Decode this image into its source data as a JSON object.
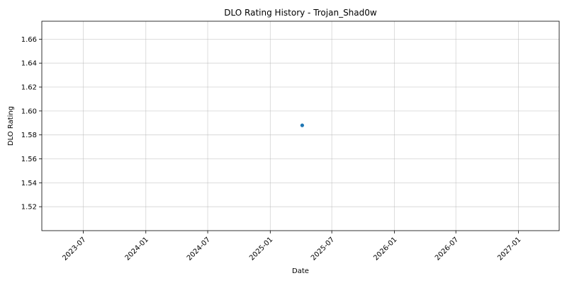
{
  "chart_data": {
    "type": "scatter",
    "title": "DLO Rating History - Trojan_Shad0w",
    "xlabel": "Date",
    "ylabel": "DLO Rating",
    "x_type": "date",
    "xlim": [
      "2023-03-01",
      "2027-05-01"
    ],
    "ylim": [
      1.5,
      1.675
    ],
    "x_ticks": [
      "2023-07",
      "2024-01",
      "2024-07",
      "2025-01",
      "2025-07",
      "2026-01",
      "2026-07",
      "2027-01"
    ],
    "y_ticks": [
      "1.52",
      "1.54",
      "1.56",
      "1.58",
      "1.60",
      "1.62",
      "1.64",
      "1.66"
    ],
    "grid": true,
    "series": [
      {
        "color": "#1f77b4",
        "points": [
          {
            "x": "2025-04-05",
            "y": 1.588
          }
        ]
      }
    ]
  }
}
